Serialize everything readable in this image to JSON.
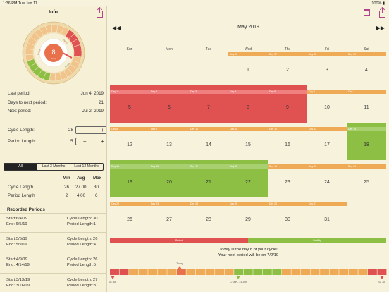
{
  "status": {
    "time": "1:36 PM",
    "date": "Tue Jun 11",
    "battery": "100%"
  },
  "sidebar": {
    "title": "Info",
    "wheel": {
      "center_day": "8",
      "center_sub": "Today",
      "ring_labels": [
        "Period",
        "Fertility",
        "Luteal"
      ]
    },
    "last_period": {
      "label": "Last period:",
      "value": "Jun 4, 2019"
    },
    "days_to_next": {
      "label": "Days to next period:",
      "value": "21"
    },
    "next_period": {
      "label": "Next period:",
      "value": "Jul 2, 2019"
    },
    "cycle_length": {
      "label": "Cycle Length:",
      "value": "28"
    },
    "period_length": {
      "label": "Period Length:",
      "value": "5"
    },
    "stepper": {
      "minus": "−",
      "plus": "+"
    },
    "segments": [
      "All",
      "Last 3 Months",
      "Last 12 Months"
    ],
    "stats": {
      "headers": [
        "Min",
        "Avg",
        "Max"
      ],
      "rows": [
        {
          "label": "Cycle Length",
          "values": [
            "26",
            "27.00",
            "30"
          ]
        },
        {
          "label": "Period Length",
          "values": [
            "2",
            "4.00",
            "6"
          ]
        }
      ]
    },
    "recorded_title": "Recorded Periods",
    "records": [
      {
        "start": "Start:6/4/19",
        "end": "End:  6/5/19",
        "cycle": "Cycle Length: 30",
        "period": "Period Length:1"
      },
      {
        "start": "Start:5/5/19",
        "end": "End:  5/9/19",
        "cycle": "Cycle Length: 26",
        "period": "Period Length:4"
      },
      {
        "start": "Start:4/9/19",
        "end": "End:  4/14/19",
        "cycle": "Cycle Length: 26",
        "period": "Period Length:5"
      },
      {
        "start": "Start:3/13/19",
        "end": "End:  3/16/19",
        "cycle": "Cycle Length: 27",
        "period": "Period Length:3"
      }
    ]
  },
  "calendar": {
    "month": "May 2019",
    "prev": "◀◀",
    "next": "▶▶",
    "weekdays": [
      "Sun",
      "Mon",
      "Tue",
      "Wed",
      "Thu",
      "Fri",
      "Sat"
    ],
    "weeks": [
      [
        {
          "d": "",
          "k": "none"
        },
        {
          "d": "",
          "k": "none"
        },
        {
          "d": "",
          "k": "none"
        },
        {
          "d": "1",
          "k": "bar",
          "b": "Day 26"
        },
        {
          "d": "2",
          "k": "bar",
          "b": "Day 27"
        },
        {
          "d": "3",
          "k": "bar",
          "b": "Day 28"
        },
        {
          "d": "4",
          "k": "bar",
          "b": "Day 29"
        }
      ],
      [
        {
          "d": "5",
          "k": "period",
          "b": "Day 1"
        },
        {
          "d": "6",
          "k": "period",
          "b": "Day 2"
        },
        {
          "d": "7",
          "k": "period",
          "b": "Day 3"
        },
        {
          "d": "8",
          "k": "period",
          "b": "Day 4"
        },
        {
          "d": "9",
          "k": "period",
          "b": "Day 5"
        },
        {
          "d": "10",
          "k": "bar",
          "b": "Day 6"
        },
        {
          "d": "11",
          "k": "bar",
          "b": "Day 7"
        }
      ],
      [
        {
          "d": "12",
          "k": "bar",
          "b": "Day 8"
        },
        {
          "d": "13",
          "k": "bar",
          "b": "Day 9"
        },
        {
          "d": "14",
          "k": "bar",
          "b": "Day 10"
        },
        {
          "d": "15",
          "k": "bar",
          "b": "Day 11"
        },
        {
          "d": "16",
          "k": "bar",
          "b": "Day 12"
        },
        {
          "d": "17",
          "k": "bar",
          "b": "Day 13"
        },
        {
          "d": "18",
          "k": "fertile",
          "b": "Day 14"
        }
      ],
      [
        {
          "d": "19",
          "k": "fertile",
          "b": "Day 15"
        },
        {
          "d": "20",
          "k": "fertile",
          "b": "Day 16"
        },
        {
          "d": "21",
          "k": "fertile",
          "b": "Day 17"
        },
        {
          "d": "22",
          "k": "fertile",
          "b": "Day 18"
        },
        {
          "d": "23",
          "k": "bar",
          "b": "Day 19"
        },
        {
          "d": "24",
          "k": "bar",
          "b": "Day 20"
        },
        {
          "d": "25",
          "k": "bar",
          "b": "Day 21"
        }
      ],
      [
        {
          "d": "26",
          "k": "bar",
          "b": "Day 22"
        },
        {
          "d": "27",
          "k": "bar",
          "b": "Day 23"
        },
        {
          "d": "28",
          "k": "bar",
          "b": "Day 24"
        },
        {
          "d": "29",
          "k": "bar",
          "b": "Day 25"
        },
        {
          "d": "30",
          "k": "bar",
          "b": "Day 26"
        },
        {
          "d": "31",
          "k": "bar",
          "b": "Day 27"
        },
        {
          "d": "",
          "k": "none"
        }
      ]
    ],
    "legend": {
      "period": "Period",
      "fertility": "Fertility"
    },
    "info_line1": "Today is the day 8 of your cycle!",
    "info_line2": "Your next period will be on 7/2/19",
    "timeline": {
      "today": "Today",
      "start": "04 Jun",
      "fertile": "17 Jun - 21 Jun",
      "end": "02 Jul"
    }
  },
  "colors": {
    "period": "#e05252",
    "fertile": "#8dbf45",
    "bar": "#eeaa55",
    "bg": "#f7f2dc",
    "accent": "#b0458a"
  }
}
